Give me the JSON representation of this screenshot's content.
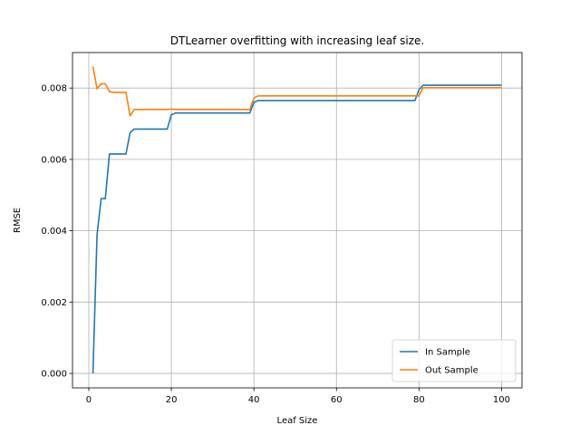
{
  "chart_data": {
    "type": "line",
    "title": "DTLearner overfitting with increasing leaf size.",
    "xlabel": "Leaf Size",
    "ylabel": "RMSE",
    "xlim": [
      -3.95,
      104.95
    ],
    "ylim": [
      -0.000405,
      0.008995
    ],
    "xticks": [
      0,
      20,
      40,
      60,
      80,
      100
    ],
    "xtick_labels": [
      "0",
      "20",
      "40",
      "60",
      "80",
      "100"
    ],
    "yticks": [
      0.0,
      0.002,
      0.004,
      0.006,
      0.008
    ],
    "ytick_labels": [
      "0.000",
      "0.002",
      "0.004",
      "0.006",
      "0.008"
    ],
    "grid": true,
    "legend_position": "lower-right",
    "series": [
      {
        "name": "In Sample",
        "color": "#1f77b4",
        "x": [
          1,
          2,
          3,
          4,
          5,
          6,
          7,
          8,
          9,
          10,
          11,
          12,
          13,
          14,
          15,
          16,
          17,
          18,
          19,
          20,
          21,
          22,
          25,
          30,
          35,
          39,
          40,
          41,
          42,
          50,
          60,
          70,
          79,
          80,
          81,
          82,
          90,
          100
        ],
        "y": [
          0.0,
          0.0039,
          0.0049,
          0.0049,
          0.00615,
          0.00615,
          0.00615,
          0.00615,
          0.00615,
          0.00675,
          0.00685,
          0.00685,
          0.00685,
          0.00685,
          0.00685,
          0.00685,
          0.00685,
          0.00685,
          0.00685,
          0.00725,
          0.0073,
          0.0073,
          0.0073,
          0.0073,
          0.0073,
          0.0073,
          0.0076,
          0.00765,
          0.00765,
          0.00765,
          0.00765,
          0.00765,
          0.00765,
          0.00795,
          0.00808,
          0.00808,
          0.00808,
          0.00808
        ]
      },
      {
        "name": "Out Sample",
        "color": "#ff7f0e",
        "x": [
          1,
          2,
          3,
          4,
          5,
          6,
          7,
          8,
          9,
          10,
          11,
          12,
          15,
          19,
          20,
          21,
          22,
          30,
          39,
          40,
          41,
          42,
          50,
          60,
          70,
          79,
          80,
          81,
          82,
          90,
          100
        ],
        "y": [
          0.0086,
          0.00798,
          0.00812,
          0.00812,
          0.0079,
          0.00788,
          0.00788,
          0.00788,
          0.00788,
          0.00722,
          0.0074,
          0.0074,
          0.0074,
          0.0074,
          0.00741,
          0.0074,
          0.0074,
          0.0074,
          0.0074,
          0.00772,
          0.00778,
          0.00778,
          0.00778,
          0.00778,
          0.00778,
          0.00778,
          0.00778,
          0.00801,
          0.00801,
          0.00801,
          0.00801
        ]
      }
    ]
  }
}
